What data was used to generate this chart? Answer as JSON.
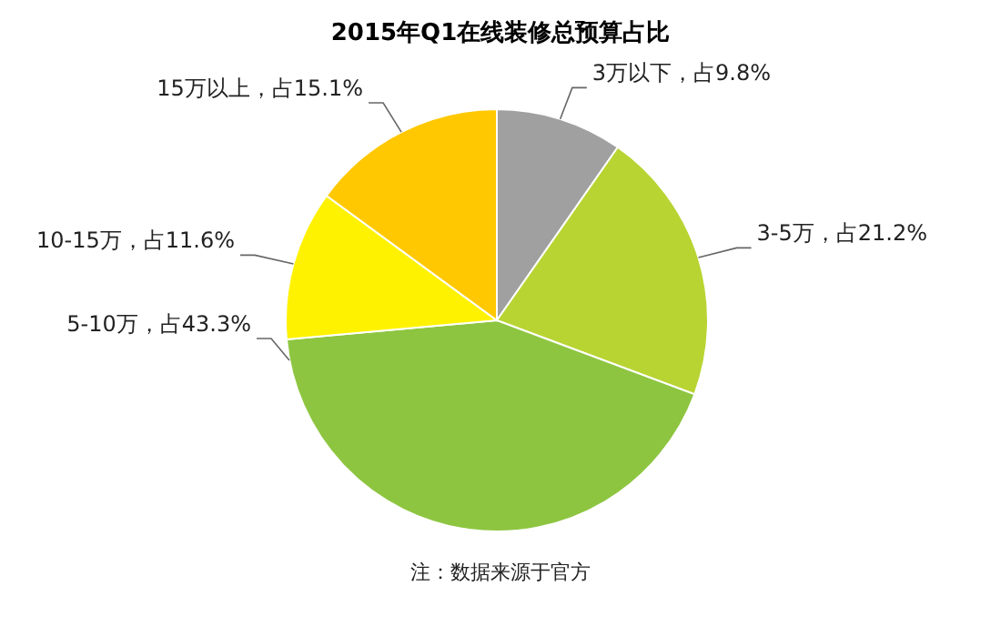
{
  "chart_data": {
    "type": "pie",
    "title": "2015年Q1在线装修总预算占比",
    "categories": [
      "3万以下，占9.8%",
      "3-5万，占21.2%",
      "5-10万，占43.3%",
      "10-15万，占11.6%",
      "15万以上，占15.1%"
    ],
    "values": [
      9.8,
      21.2,
      43.3,
      11.6,
      15.1
    ],
    "colors": [
      "#a0a0a0",
      "#b8d432",
      "#8dc540",
      "#fff200",
      "#ffc800"
    ],
    "annotations": [
      "注：数据来源于官方"
    ]
  }
}
